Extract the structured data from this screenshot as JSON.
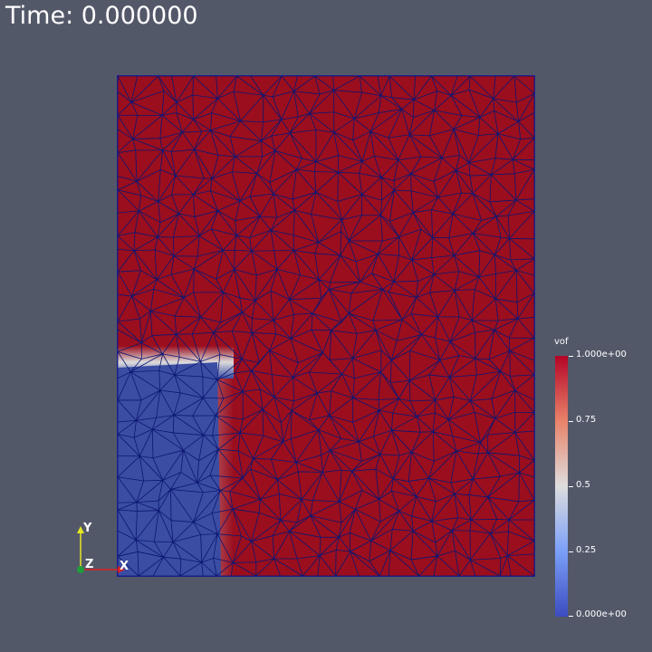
{
  "time_label": "Time: 0.000000",
  "field": {
    "variable": "vof",
    "background_value": 1.0,
    "region_shape": "rectangle with fluid (vof=0) block in lower-left",
    "colors": {
      "high": "#9a0e1e",
      "mid": "#dddddd",
      "low": "#3a4da3",
      "mesh_edges": "#0c1672",
      "background": "#535869"
    }
  },
  "legend": {
    "title": "vof",
    "labels": [
      "1.000e+00",
      "0.75",
      "0.5",
      "0.25",
      "0.000e+00"
    ],
    "colormap": [
      "#b40426",
      "#e8836a",
      "#dddddd",
      "#7b9ff9",
      "#3b4cc0"
    ]
  },
  "axes": {
    "x_label": "X",
    "y_label": "Y",
    "z_label": "Z",
    "x_color": "#d62020",
    "y_color": "#e6e622",
    "z_color": "#1f9d3a"
  }
}
